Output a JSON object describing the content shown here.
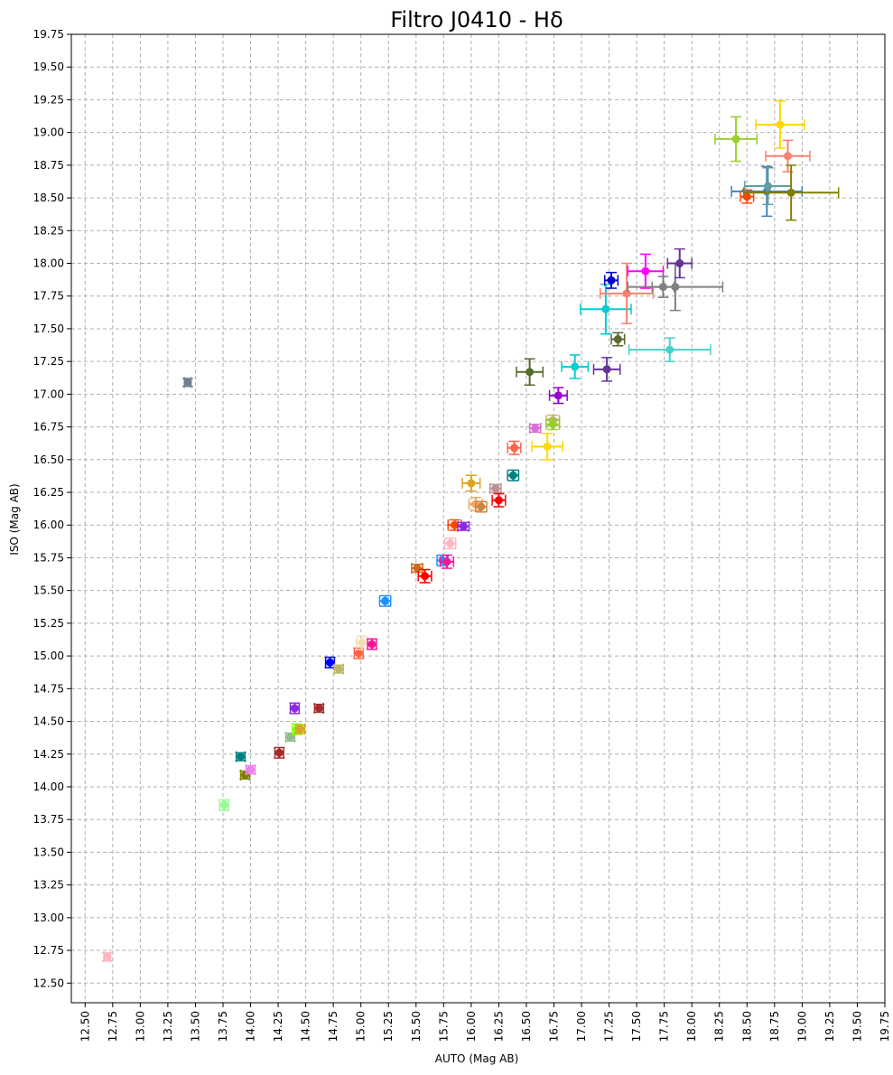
{
  "chart_data": {
    "type": "scatter",
    "title": "Filtro J0410 - Hδ",
    "xlabel": "AUTO (Mag AB)",
    "ylabel": "ISO (Mag AB)",
    "xlim": [
      12.375,
      19.75
    ],
    "ylim": [
      12.35,
      19.75
    ],
    "x_ticks": [
      "12.50",
      "12.75",
      "13.00",
      "13.25",
      "13.50",
      "13.75",
      "14.00",
      "14.25",
      "14.50",
      "14.75",
      "15.00",
      "15.25",
      "15.50",
      "15.75",
      "16.00",
      "16.25",
      "16.50",
      "16.75",
      "17.00",
      "17.25",
      "17.50",
      "17.75",
      "18.00",
      "18.25",
      "18.50",
      "18.75",
      "19.00",
      "19.25",
      "19.50",
      "19.75"
    ],
    "y_ticks": [
      "12.50",
      "12.75",
      "13.00",
      "13.25",
      "13.50",
      "13.75",
      "14.00",
      "14.25",
      "14.50",
      "14.75",
      "15.00",
      "15.25",
      "15.50",
      "15.75",
      "16.00",
      "16.25",
      "16.50",
      "16.75",
      "17.00",
      "17.25",
      "17.50",
      "17.75",
      "18.00",
      "18.25",
      "18.50",
      "18.75",
      "19.00",
      "19.25",
      "19.50",
      "19.75"
    ],
    "grid": true,
    "points": [
      {
        "x": 12.7,
        "y": 12.7,
        "xerr": 0.03,
        "yerr": 0.03,
        "color": "#ffb6c1"
      },
      {
        "x": 13.43,
        "y": 17.09,
        "xerr": 0.03,
        "yerr": 0.03,
        "color": "#708090"
      },
      {
        "x": 13.76,
        "y": 13.86,
        "xerr": 0.04,
        "yerr": 0.04,
        "color": "#98fb98"
      },
      {
        "x": 13.91,
        "y": 14.23,
        "xerr": 0.04,
        "yerr": 0.03,
        "color": "#008080"
      },
      {
        "x": 13.95,
        "y": 14.09,
        "xerr": 0.04,
        "yerr": 0.03,
        "color": "#808000"
      },
      {
        "x": 14.0,
        "y": 14.13,
        "xerr": 0.04,
        "yerr": 0.03,
        "color": "#ee82ee"
      },
      {
        "x": 14.26,
        "y": 14.26,
        "xerr": 0.04,
        "yerr": 0.04,
        "color": "#a52a2a"
      },
      {
        "x": 14.36,
        "y": 14.38,
        "xerr": 0.04,
        "yerr": 0.03,
        "color": "#8fbc8f"
      },
      {
        "x": 14.4,
        "y": 14.6,
        "xerr": 0.04,
        "yerr": 0.04,
        "color": "#8a2be2"
      },
      {
        "x": 14.42,
        "y": 14.44,
        "xerr": 0.04,
        "yerr": 0.04,
        "color": "#7fff00"
      },
      {
        "x": 14.45,
        "y": 14.44,
        "xerr": 0.04,
        "yerr": 0.03,
        "color": "#daa520"
      },
      {
        "x": 14.62,
        "y": 14.6,
        "xerr": 0.04,
        "yerr": 0.03,
        "color": "#a52a2a"
      },
      {
        "x": 14.72,
        "y": 14.95,
        "xerr": 0.04,
        "yerr": 0.04,
        "color": "#0000ff"
      },
      {
        "x": 14.8,
        "y": 14.9,
        "xerr": 0.04,
        "yerr": 0.03,
        "color": "#bdb76b"
      },
      {
        "x": 14.98,
        "y": 15.02,
        "xerr": 0.04,
        "yerr": 0.04,
        "color": "#ff6347"
      },
      {
        "x": 15.01,
        "y": 15.1,
        "xerr": 0.05,
        "yerr": 0.05,
        "color": "#f5deb3"
      },
      {
        "x": 15.1,
        "y": 15.09,
        "xerr": 0.04,
        "yerr": 0.04,
        "color": "#ff1493"
      },
      {
        "x": 15.22,
        "y": 15.42,
        "xerr": 0.05,
        "yerr": 0.04,
        "color": "#1e90ff"
      },
      {
        "x": 15.51,
        "y": 15.67,
        "xerr": 0.05,
        "yerr": 0.03,
        "color": "#d2691e"
      },
      {
        "x": 15.58,
        "y": 15.61,
        "xerr": 0.06,
        "yerr": 0.05,
        "color": "#ff0000"
      },
      {
        "x": 15.74,
        "y": 15.73,
        "xerr": 0.05,
        "yerr": 0.04,
        "color": "#1e90ff"
      },
      {
        "x": 15.78,
        "y": 15.72,
        "xerr": 0.06,
        "yerr": 0.05,
        "color": "#ff1493"
      },
      {
        "x": 15.81,
        "y": 15.86,
        "xerr": 0.05,
        "yerr": 0.04,
        "color": "#ffb6c1"
      },
      {
        "x": 15.85,
        "y": 16.0,
        "xerr": 0.06,
        "yerr": 0.04,
        "color": "#ff4500"
      },
      {
        "x": 15.93,
        "y": 15.99,
        "xerr": 0.05,
        "yerr": 0.03,
        "color": "#8a2be2"
      },
      {
        "x": 16.0,
        "y": 16.32,
        "xerr": 0.08,
        "yerr": 0.06,
        "color": "#daa520"
      },
      {
        "x": 16.04,
        "y": 16.16,
        "xerr": 0.06,
        "yerr": 0.05,
        "color": "#f4a460"
      },
      {
        "x": 16.09,
        "y": 16.14,
        "xerr": 0.05,
        "yerr": 0.04,
        "color": "#cd853f"
      },
      {
        "x": 16.22,
        "y": 16.28,
        "xerr": 0.05,
        "yerr": 0.03,
        "color": "#bc8f8f"
      },
      {
        "x": 16.25,
        "y": 16.19,
        "xerr": 0.06,
        "yerr": 0.05,
        "color": "#ff0000"
      },
      {
        "x": 16.38,
        "y": 16.38,
        "xerr": 0.05,
        "yerr": 0.04,
        "color": "#008080"
      },
      {
        "x": 16.39,
        "y": 16.59,
        "xerr": 0.06,
        "yerr": 0.05,
        "color": "#ff6347"
      },
      {
        "x": 16.58,
        "y": 16.74,
        "xerr": 0.05,
        "yerr": 0.03,
        "color": "#da70d6"
      },
      {
        "x": 16.69,
        "y": 16.6,
        "xerr": 0.14,
        "yerr": 0.1,
        "color": "#ffd700"
      },
      {
        "x": 16.74,
        "y": 16.8,
        "xerr": 0.06,
        "yerr": 0.04,
        "color": "#bdb76b"
      },
      {
        "x": 16.74,
        "y": 16.77,
        "xerr": 0.06,
        "yerr": 0.04,
        "color": "#9acd32"
      },
      {
        "x": 16.79,
        "y": 16.99,
        "xerr": 0.08,
        "yerr": 0.06,
        "color": "#9400d3"
      },
      {
        "x": 16.53,
        "y": 17.17,
        "xerr": 0.12,
        "yerr": 0.1,
        "color": "#556b2f"
      },
      {
        "x": 16.94,
        "y": 17.21,
        "xerr": 0.12,
        "yerr": 0.09,
        "color": "#00ced1"
      },
      {
        "x": 17.23,
        "y": 17.19,
        "xerr": 0.12,
        "yerr": 0.09,
        "color": "#663399"
      },
      {
        "x": 17.33,
        "y": 17.42,
        "xerr": 0.06,
        "yerr": 0.05,
        "color": "#556b2f"
      },
      {
        "x": 17.22,
        "y": 17.65,
        "xerr": 0.23,
        "yerr": 0.19,
        "color": "#00ced1"
      },
      {
        "x": 17.27,
        "y": 17.87,
        "xerr": 0.06,
        "yerr": 0.06,
        "color": "#0000cd"
      },
      {
        "x": 17.41,
        "y": 17.77,
        "xerr": 0.24,
        "yerr": 0.23,
        "color": "#fa8072"
      },
      {
        "x": 17.58,
        "y": 17.94,
        "xerr": 0.16,
        "yerr": 0.13,
        "color": "#ff00ff"
      },
      {
        "x": 17.74,
        "y": 17.82,
        "xerr": 0.1,
        "yerr": 0.08,
        "color": "#808080"
      },
      {
        "x": 17.85,
        "y": 17.82,
        "xerr": 0.43,
        "yerr": 0.18,
        "color": "#808080"
      },
      {
        "x": 17.8,
        "y": 17.34,
        "xerr": 0.37,
        "yerr": 0.09,
        "color": "#48d1cc"
      },
      {
        "x": 17.89,
        "y": 18.0,
        "xerr": 0.11,
        "yerr": 0.11,
        "color": "#663399"
      },
      {
        "x": 18.4,
        "y": 18.95,
        "xerr": 0.19,
        "yerr": 0.17,
        "color": "#9acd32"
      },
      {
        "x": 18.5,
        "y": 18.51,
        "xerr": 0.06,
        "yerr": 0.05,
        "color": "#ff4500"
      },
      {
        "x": 18.68,
        "y": 18.55,
        "xerr": 0.32,
        "yerr": 0.19,
        "color": "#4682b4"
      },
      {
        "x": 18.69,
        "y": 18.59,
        "xerr": 0.21,
        "yerr": 0.14,
        "color": "#5f9ea0"
      },
      {
        "x": 18.8,
        "y": 19.06,
        "xerr": 0.22,
        "yerr": 0.18,
        "color": "#ffd700"
      },
      {
        "x": 18.87,
        "y": 18.82,
        "xerr": 0.2,
        "yerr": 0.12,
        "color": "#fa8072"
      },
      {
        "x": 18.9,
        "y": 18.54,
        "xerr": 0.43,
        "yerr": 0.21,
        "color": "#808000"
      }
    ]
  }
}
